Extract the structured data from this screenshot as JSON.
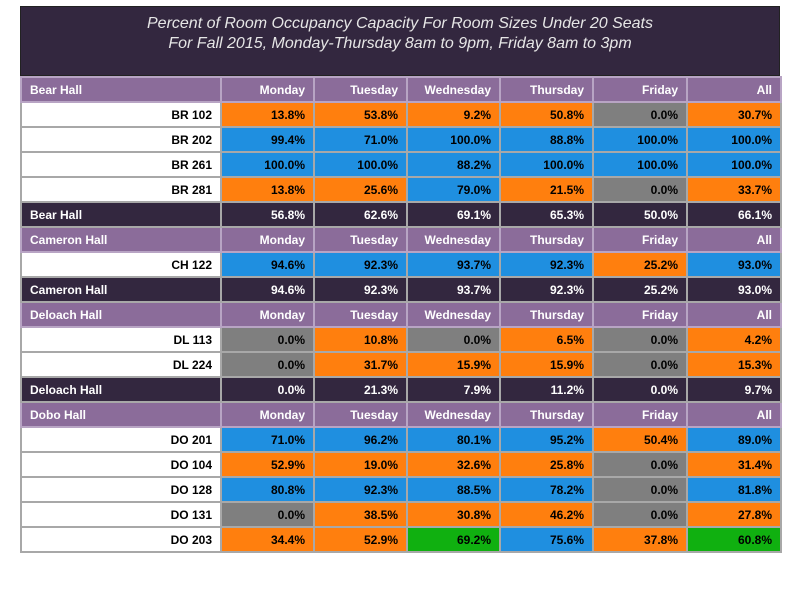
{
  "title": {
    "line1": "Percent of Room Occupancy Capacity For Room Sizes Under 20 Seats",
    "line2": "For Fall 2015, Monday-Thursday 8am to 9pm, Friday 8am to 3pm"
  },
  "columns": [
    "Monday",
    "Tuesday",
    "Wednesday",
    "Thursday",
    "Friday",
    "All"
  ],
  "colors": {
    "orange": "#ff7f0e",
    "blue": "#1f8fe0",
    "gray": "#7f7f7f",
    "green": "#10b010",
    "header": "#8b6c9a",
    "dark": "#33273f"
  },
  "halls": [
    {
      "name": "Bear Hall",
      "rooms": [
        {
          "name": "BR 102",
          "values": [
            "13.8%",
            "53.8%",
            "9.2%",
            "50.8%",
            "0.0%",
            "30.7%"
          ],
          "colors": [
            "orange",
            "orange",
            "orange",
            "orange",
            "gray",
            "orange"
          ]
        },
        {
          "name": "BR 202",
          "values": [
            "99.4%",
            "71.0%",
            "100.0%",
            "88.8%",
            "100.0%",
            "100.0%"
          ],
          "colors": [
            "blue",
            "blue",
            "blue",
            "blue",
            "blue",
            "blue"
          ]
        },
        {
          "name": "BR 261",
          "values": [
            "100.0%",
            "100.0%",
            "88.2%",
            "100.0%",
            "100.0%",
            "100.0%"
          ],
          "colors": [
            "blue",
            "blue",
            "blue",
            "blue",
            "blue",
            "blue"
          ]
        },
        {
          "name": "BR 281",
          "values": [
            "13.8%",
            "25.6%",
            "79.0%",
            "21.5%",
            "0.0%",
            "33.7%"
          ],
          "colors": [
            "orange",
            "orange",
            "blue",
            "orange",
            "gray",
            "orange"
          ]
        }
      ],
      "summary": {
        "values": [
          "56.8%",
          "62.6%",
          "69.1%",
          "65.3%",
          "50.0%",
          "66.1%"
        ],
        "colors": [
          "yellow",
          "green",
          "green",
          "green",
          "yellow",
          "green"
        ]
      }
    },
    {
      "name": "Cameron Hall",
      "rooms": [
        {
          "name": "CH 122",
          "values": [
            "94.6%",
            "92.3%",
            "93.7%",
            "92.3%",
            "25.2%",
            "93.0%"
          ],
          "colors": [
            "blue",
            "blue",
            "blue",
            "blue",
            "orange",
            "blue"
          ]
        }
      ],
      "summary": {
        "values": [
          "94.6%",
          "92.3%",
          "93.7%",
          "92.3%",
          "25.2%",
          "93.0%"
        ],
        "colors": [
          "aqua",
          "aqua",
          "aqua",
          "aqua",
          "orange",
          "aqua"
        ]
      }
    },
    {
      "name": "Deloach Hall",
      "rooms": [
        {
          "name": "DL 113",
          "values": [
            "0.0%",
            "10.8%",
            "0.0%",
            "6.5%",
            "0.0%",
            "4.2%"
          ],
          "colors": [
            "gray",
            "orange",
            "gray",
            "orange",
            "gray",
            "orange"
          ]
        },
        {
          "name": "DL 224",
          "values": [
            "0.0%",
            "31.7%",
            "15.9%",
            "15.9%",
            "0.0%",
            "15.3%"
          ],
          "colors": [
            "gray",
            "orange",
            "orange",
            "orange",
            "gray",
            "orange"
          ]
        }
      ],
      "summary": {
        "values": [
          "0.0%",
          "21.3%",
          "7.9%",
          "11.2%",
          "0.0%",
          "9.7%"
        ],
        "colors": [
          "gray",
          "orange",
          "red",
          "red",
          "gray",
          "red"
        ]
      }
    },
    {
      "name": "Dobo Hall",
      "rooms": [
        {
          "name": "DO 201",
          "values": [
            "71.0%",
            "96.2%",
            "80.1%",
            "95.2%",
            "50.4%",
            "89.0%"
          ],
          "colors": [
            "blue",
            "blue",
            "blue",
            "blue",
            "orange",
            "blue"
          ]
        },
        {
          "name": "DO 104",
          "values": [
            "52.9%",
            "19.0%",
            "32.6%",
            "25.8%",
            "0.0%",
            "31.4%"
          ],
          "colors": [
            "orange",
            "orange",
            "orange",
            "orange",
            "gray",
            "orange"
          ]
        },
        {
          "name": "DO 128",
          "values": [
            "80.8%",
            "92.3%",
            "88.5%",
            "78.2%",
            "0.0%",
            "81.8%"
          ],
          "colors": [
            "blue",
            "blue",
            "blue",
            "blue",
            "gray",
            "blue"
          ]
        },
        {
          "name": "DO 131",
          "values": [
            "0.0%",
            "38.5%",
            "30.8%",
            "46.2%",
            "0.0%",
            "27.8%"
          ],
          "colors": [
            "gray",
            "orange",
            "orange",
            "orange",
            "gray",
            "orange"
          ]
        },
        {
          "name": "DO 203",
          "values": [
            "34.4%",
            "52.9%",
            "69.2%",
            "75.6%",
            "37.8%",
            "60.8%"
          ],
          "colors": [
            "orange",
            "orange",
            "green",
            "blue",
            "orange",
            "green"
          ]
        }
      ]
    }
  ]
}
